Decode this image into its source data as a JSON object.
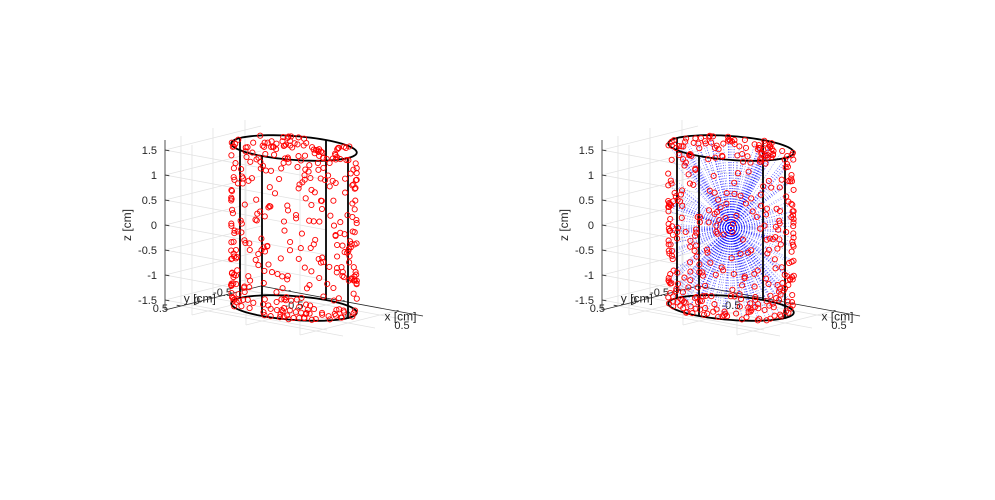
{
  "chart_data": [
    {
      "type": "scatter",
      "title": "",
      "xlabel": "x [cm]",
      "ylabel": "y [cm]",
      "zlabel": "z [cm]",
      "xlim": [
        -0.75,
        0.75
      ],
      "ylim": [
        -0.75,
        0.75
      ],
      "zlim": [
        -1.7,
        1.7
      ],
      "x_ticks": [
        "-0.5",
        "0",
        "0.5"
      ],
      "y_ticks": [
        "-0.5",
        "0",
        "0.5"
      ],
      "z_ticks": [
        "-1.5",
        "-1",
        "-0.5",
        "0",
        "0.5",
        "1",
        "1.5"
      ],
      "grid": true,
      "cylinder": {
        "radius": 0.5,
        "z_min": -1.6,
        "z_max": 1.6
      },
      "marker": "circle",
      "marker_color": "#ff0000",
      "points": {
        "surface_count": 260,
        "cap_count": 55,
        "seed": 7
      },
      "rays_to_center": false
    },
    {
      "type": "scatter",
      "title": "",
      "xlabel": "x [cm]",
      "ylabel": "y [cm]",
      "zlabel": "z [cm]",
      "xlim": [
        -0.75,
        0.75
      ],
      "ylim": [
        -0.75,
        0.75
      ],
      "zlim": [
        -1.7,
        1.7
      ],
      "x_ticks": [
        "-0.5",
        "0",
        "0.5"
      ],
      "y_ticks": [
        "-0.5",
        "0",
        "0.5"
      ],
      "z_ticks": [
        "-1.5",
        "-1",
        "-0.5",
        "0",
        "0.5",
        "1",
        "1.5"
      ],
      "grid": true,
      "cylinder": {
        "radius": 0.5,
        "z_min": -1.6,
        "z_max": 1.6
      },
      "marker": "circle",
      "marker_color": "#ff0000",
      "points": {
        "surface_count": 260,
        "cap_count": 55,
        "seed": 11
      },
      "rays_to_center": true,
      "ray_color": "#0000ff",
      "ray_style": "dotted"
    }
  ]
}
